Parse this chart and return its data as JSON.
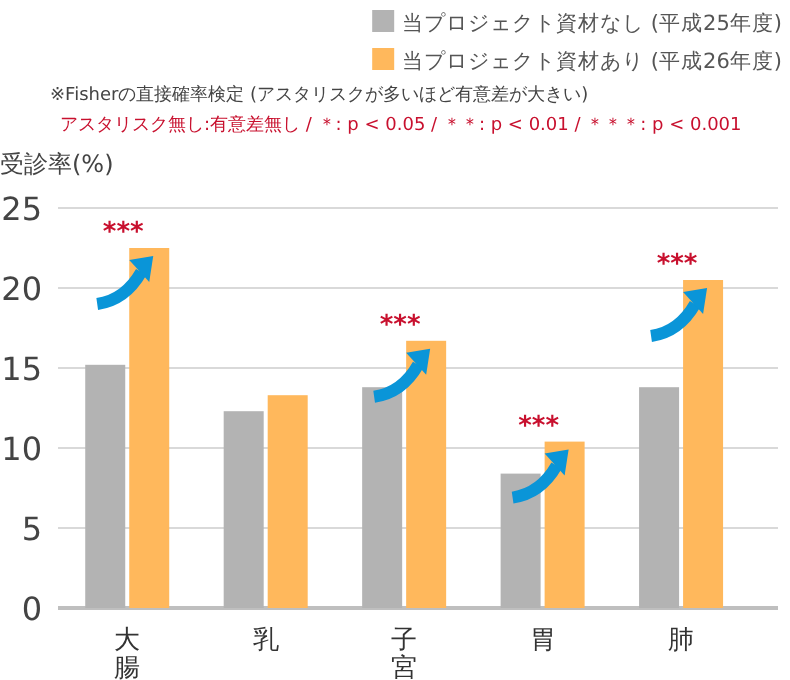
{
  "chart_data": {
    "type": "bar",
    "ylabel": "受診率(%)",
    "categories": [
      "大腸",
      "乳",
      "子宮",
      "胃",
      "肺"
    ],
    "series": [
      {
        "name": "当プロジェクト資材なし (平成25年度)",
        "color": "#b3b3b3",
        "values": [
          15.2,
          12.3,
          13.8,
          8.4,
          13.8
        ]
      },
      {
        "name": "当プロジェクト資材あり (平成26年度)",
        "color": "#ffb85c",
        "values": [
          22.5,
          13.3,
          16.7,
          10.4,
          20.5
        ]
      }
    ],
    "ylim": [
      0,
      25
    ],
    "yticks": [
      0,
      5,
      10,
      15,
      20,
      25
    ],
    "grid": "y",
    "legend": "top right",
    "annotations": [
      "※Fisherの直接確率検定 (アスタリスクが多いほど有意差が大きい)",
      "アスタリスク無し:有意差無し / ＊: p < 0.05 / ＊＊: p < 0.01 / ＊＊＊: p < 0.001",
      {
        "text": "***",
        "x": "大腸",
        "y": 22.5
      },
      {
        "text": "***",
        "x": "子宮",
        "y": 16.7
      },
      {
        "text": "***",
        "x": "胃",
        "y": 10.4
      },
      {
        "text": "***",
        "x": "肺",
        "y": 20.5
      }
    ]
  }
}
